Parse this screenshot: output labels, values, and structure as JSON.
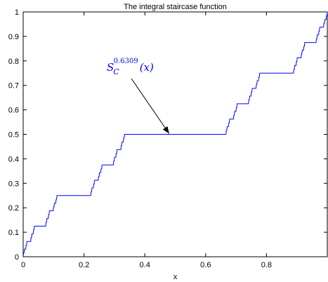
{
  "chart_data": {
    "type": "line",
    "title": "The integral staircase function",
    "xlabel": "x",
    "ylabel": "",
    "xlim": [
      0,
      1
    ],
    "ylim": [
      0,
      1
    ],
    "xticks": [
      0,
      0.2,
      0.4,
      0.6,
      0.8
    ],
    "xtick_labels": [
      "0",
      "0.2",
      "0.4",
      "0.6",
      "0.8"
    ],
    "yticks": [
      0,
      0.1,
      0.2,
      0.3,
      0.4,
      0.5,
      0.6,
      0.7,
      0.8,
      0.9,
      1
    ],
    "ytick_labels": [
      "0",
      "0.1",
      "0.2",
      "0.3",
      "0.4",
      "0.5",
      "0.6",
      "0.7",
      "0.8",
      "0.9",
      "1"
    ],
    "grid": false,
    "series": [
      {
        "color": "#0000ff",
        "function": "integral staircase of the middle-thirds Cantor set, exponent 0.6309",
        "depth": 6
      }
    ],
    "annotation": {
      "base": "S",
      "subscript": "C",
      "superscript": "0.6309",
      "argument": "(x)",
      "arrow_tip": [
        0.48,
        0.5
      ],
      "color": "#0000ff"
    }
  }
}
